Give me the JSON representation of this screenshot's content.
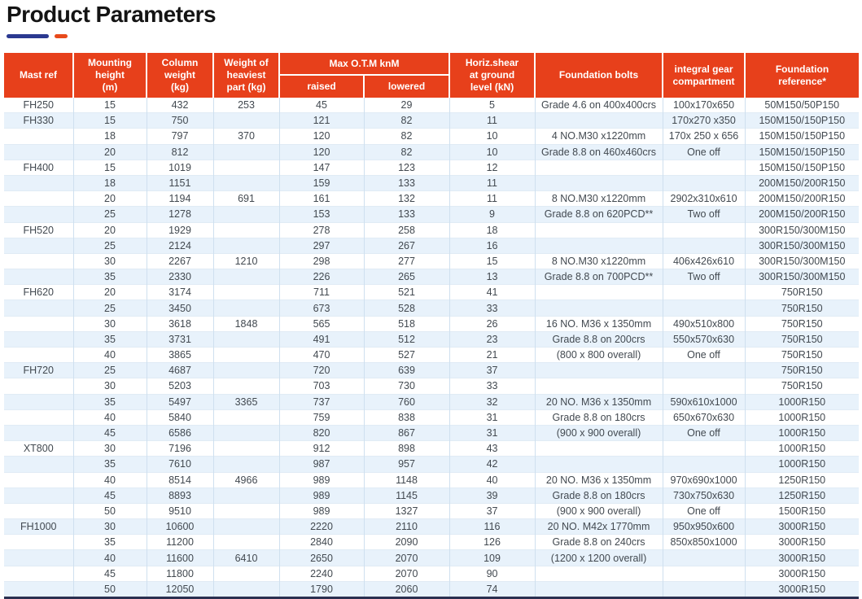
{
  "page": {
    "title": "Product Parameters"
  },
  "accents": {
    "blue": "#2b3990",
    "red": "#e84a1b",
    "header_red": "#e7401b",
    "stripe": "#e8f2fb",
    "bottom_line": "#2a3050"
  },
  "table": {
    "header": {
      "mast_ref": "Mast ref",
      "mounting_height": "Mounting\nheight\n(m)",
      "column_weight": "Column\nweight\n(kg)",
      "weight_heaviest": "Weight of\nheaviest\npart (kg)",
      "max_otm": "Max O.T.M knM",
      "raised": "raised",
      "lowered": "lowered",
      "horiz_shear": "Horiz.shear\nat ground\nlevel (kN)",
      "foundation_bolts": "Foundation bolts",
      "integral_gear": "integral gear\ncompartment",
      "foundation_reference": "Foundation\nreference*"
    },
    "columns": [
      "Mast ref",
      "Mounting height (m)",
      "Column weight (kg)",
      "Weight of heaviest part (kg)",
      "Max O.T.M knM raised",
      "Max O.T.M knM lowered",
      "Horiz.shear at ground level (kN)",
      "Foundation bolts",
      "integral gear compartment",
      "Foundation reference*"
    ],
    "rows": [
      [
        "FH250",
        "15",
        "432",
        "253",
        "45",
        "29",
        "5",
        "Grade 4.6 on 400x400crs",
        "100x170x650",
        "50M150/50P150"
      ],
      [
        "FH330",
        "15",
        "750",
        "",
        "121",
        "82",
        "11",
        "",
        "170x270 x350",
        "150M150/150P150"
      ],
      [
        "",
        "18",
        "797",
        "370",
        "120",
        "82",
        "10",
        "4 NO.M30 x1220mm",
        "170x 250 x 656",
        "150M150/150P150"
      ],
      [
        "",
        "20",
        "812",
        "",
        "120",
        "82",
        "10",
        "Grade 8.8 on 460x460crs",
        "One off",
        "150M150/150P150"
      ],
      [
        "FH400",
        "15",
        "1019",
        "",
        "147",
        "123",
        "12",
        "",
        "",
        "150M150/150P150"
      ],
      [
        "",
        "18",
        "1151",
        "",
        "159",
        "133",
        "11",
        "",
        "",
        "200M150/200R150"
      ],
      [
        "",
        "20",
        "1194",
        "691",
        "161",
        "132",
        "11",
        "8 NO.M30 x1220mm",
        "2902x310x610",
        "200M150/200R150"
      ],
      [
        "",
        "25",
        "1278",
        "",
        "153",
        "133",
        "9",
        "Grade 8.8 on 620PCD**",
        "Two off",
        "200M150/200R150"
      ],
      [
        "FH520",
        "20",
        "1929",
        "",
        "278",
        "258",
        "18",
        "",
        "",
        "300R150/300M150"
      ],
      [
        "",
        "25",
        "2124",
        "",
        "297",
        "267",
        "16",
        "",
        "",
        "300R150/300M150"
      ],
      [
        "",
        "30",
        "2267",
        "1210",
        "298",
        "277",
        "15",
        "8 NO.M30 x1220mm",
        "406x426x610",
        "300R150/300M150"
      ],
      [
        "",
        "35",
        "2330",
        "",
        "226",
        "265",
        "13",
        "Grade 8.8 on 700PCD**",
        "Two off",
        "300R150/300M150"
      ],
      [
        "FH620",
        "20",
        "3174",
        "",
        "711",
        "521",
        "41",
        "",
        "",
        "750R150"
      ],
      [
        "",
        "25",
        "3450",
        "",
        "673",
        "528",
        "33",
        "",
        "",
        "750R150"
      ],
      [
        "",
        "30",
        "3618",
        "1848",
        "565",
        "518",
        "26",
        "16 NO. M36 x 1350mm",
        "490x510x800",
        "750R150"
      ],
      [
        "",
        "35",
        "3731",
        "",
        "491",
        "512",
        "23",
        "Grade 8.8 on 200crs",
        "550x570x630",
        "750R150"
      ],
      [
        "",
        "40",
        "3865",
        "",
        "470",
        "527",
        "21",
        "(800 x 800 overall)",
        "One off",
        "750R150"
      ],
      [
        "FH720",
        "25",
        "4687",
        "",
        "720",
        "639",
        "37",
        "",
        "",
        "750R150"
      ],
      [
        "",
        "30",
        "5203",
        "",
        "703",
        "730",
        "33",
        "",
        "",
        "750R150"
      ],
      [
        "",
        "35",
        "5497",
        "3365",
        "737",
        "760",
        "32",
        "20 NO. M36 x 1350mm",
        "590x610x1000",
        "1000R150"
      ],
      [
        "",
        "40",
        "5840",
        "",
        "759",
        "838",
        "31",
        "Grade 8.8 on 180crs",
        "650x670x630",
        "1000R150"
      ],
      [
        "",
        "45",
        "6586",
        "",
        "820",
        "867",
        "31",
        "(900 x 900 overall)",
        "One off",
        "1000R150"
      ],
      [
        "XT800",
        "30",
        "7196",
        "",
        "912",
        "898",
        "43",
        "",
        "",
        "1000R150"
      ],
      [
        "",
        "35",
        "7610",
        "",
        "987",
        "957",
        "42",
        "",
        "",
        "1000R150"
      ],
      [
        "",
        "40",
        "8514",
        "4966",
        "989",
        "1148",
        "40",
        "20 NO. M36 x 1350mm",
        "970x690x1000",
        "1250R150"
      ],
      [
        "",
        "45",
        "8893",
        "",
        "989",
        "1145",
        "39",
        "Grade 8.8 on 180crs",
        "730x750x630",
        "1250R150"
      ],
      [
        "",
        "50",
        "9510",
        "",
        "989",
        "1327",
        "37",
        "(900 x 900 overall)",
        "One off",
        "1500R150"
      ],
      [
        "FH1000",
        "30",
        "10600",
        "",
        "2220",
        "2110",
        "116",
        "20 NO. M42x 1770mm",
        "950x950x600",
        "3000R150"
      ],
      [
        "",
        "35",
        "11200",
        "",
        "2840",
        "2090",
        "126",
        "Grade 8.8 on 240crs",
        "850x850x1000",
        "3000R150"
      ],
      [
        "",
        "40",
        "11600",
        "6410",
        "2650",
        "2070",
        "109",
        "(1200 x 1200 overall)",
        "",
        "3000R150"
      ],
      [
        "",
        "45",
        "11800",
        "",
        "2240",
        "2070",
        "90",
        "",
        "",
        "3000R150"
      ],
      [
        "",
        "50",
        "12050",
        "",
        "1790",
        "2060",
        "74",
        "",
        "",
        "3000R150"
      ]
    ]
  }
}
